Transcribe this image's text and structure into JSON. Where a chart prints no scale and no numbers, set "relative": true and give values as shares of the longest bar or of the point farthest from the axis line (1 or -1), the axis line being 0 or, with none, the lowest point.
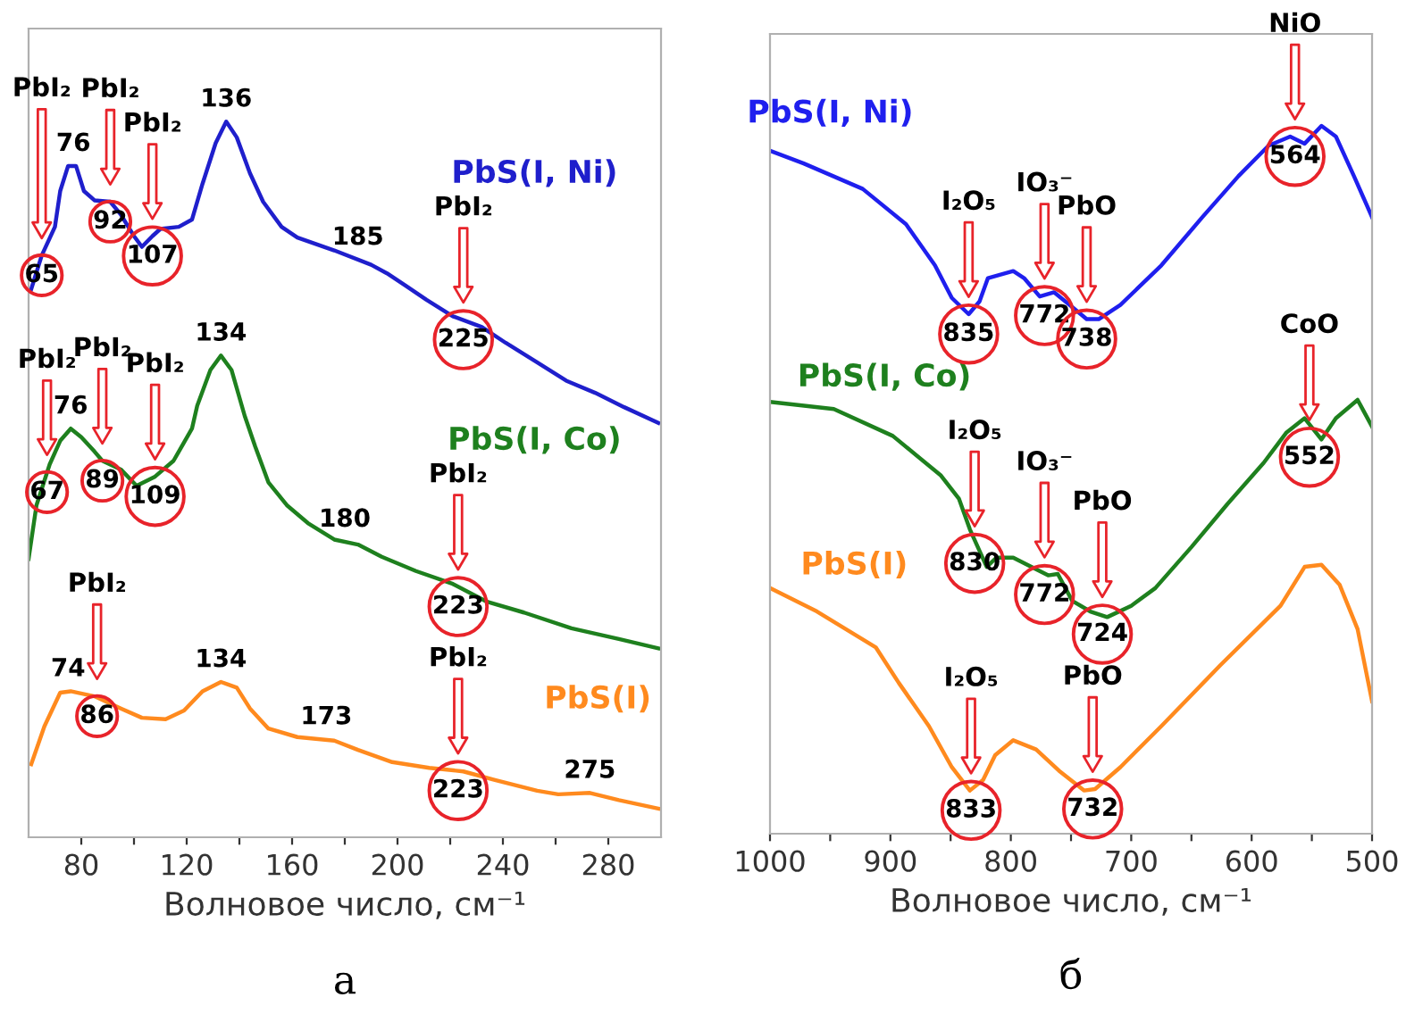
{
  "chart_data": [
    {
      "type": "line",
      "relative": true,
      "xlabel": "Волновое число, см⁻¹",
      "xlim": [
        60,
        300
      ],
      "xticks": [
        80,
        {
          "value": 100,
          "label": null
        },
        120,
        {
          "value": 140,
          "label": null
        },
        160,
        {
          "value": 180,
          "label": null
        },
        200,
        {
          "value": 220,
          "label": null
        },
        240,
        {
          "value": 260,
          "label": null
        },
        280
      ],
      "tick_labels": "x",
      "series": [
        {
          "name": "PbS(I, Ni)",
          "color": "#1f1fcc",
          "x": [
            61,
            65,
            70,
            72,
            75,
            78,
            81,
            85,
            91,
            95,
            100,
            103,
            107,
            110,
            117,
            122,
            126,
            131,
            135,
            139,
            144,
            149,
            156,
            162,
            176,
            190,
            196,
            203,
            211,
            221,
            232,
            241,
            252,
            264,
            275,
            286,
            299
          ],
          "values": [
            0.766,
            0.813,
            0.853,
            0.903,
            0.938,
            0.938,
            0.903,
            0.89,
            0.888,
            0.87,
            0.84,
            0.825,
            0.84,
            0.85,
            0.853,
            0.863,
            0.913,
            0.97,
            1.0,
            0.978,
            0.928,
            0.888,
            0.853,
            0.838,
            0.82,
            0.8,
            0.788,
            0.771,
            0.751,
            0.728,
            0.713,
            0.691,
            0.666,
            0.638,
            0.621,
            0.601,
            0.579
          ]
        },
        {
          "name": "PbS(I, Co)",
          "color": "#1e801e",
          "x": [
            60,
            63,
            68,
            72,
            76,
            80,
            85,
            88,
            95,
            101,
            108,
            115,
            122,
            124,
            129,
            133,
            137,
            142,
            146,
            151,
            158,
            166,
            176,
            185,
            194,
            207,
            221,
            234,
            248,
            266,
            284,
            299
          ],
          "values": [
            0.389,
            0.464,
            0.521,
            0.554,
            0.571,
            0.559,
            0.539,
            0.526,
            0.514,
            0.491,
            0.504,
            0.526,
            0.571,
            0.603,
            0.653,
            0.673,
            0.653,
            0.589,
            0.546,
            0.496,
            0.464,
            0.439,
            0.416,
            0.409,
            0.392,
            0.372,
            0.354,
            0.329,
            0.314,
            0.292,
            0.277,
            0.264
          ]
        },
        {
          "name": "PbS(I)",
          "color": "#ff8a1e",
          "x": [
            61,
            66,
            72,
            76,
            85,
            95,
            103,
            112,
            119,
            126,
            133,
            139,
            144,
            151,
            162,
            176,
            185,
            198,
            212,
            225,
            237,
            253,
            261,
            273,
            284,
            299
          ],
          "values": [
            0.102,
            0.155,
            0.202,
            0.204,
            0.197,
            0.18,
            0.167,
            0.165,
            0.177,
            0.204,
            0.217,
            0.209,
            0.18,
            0.152,
            0.14,
            0.135,
            0.122,
            0.105,
            0.097,
            0.092,
            0.08,
            0.065,
            0.06,
            0.062,
            0.052,
            0.04
          ]
        }
      ],
      "annotations": [
        "PbI₂",
        {
          "text": "65",
          "x": 65,
          "y": 0.813
        },
        {
          "text": "76",
          "x": 77,
          "y": 0.938
        },
        "PbI₂",
        {
          "text": "92",
          "x": 91,
          "y": 0.888
        },
        "PbI₂",
        {
          "text": "107",
          "x": 107,
          "y": 0.84
        },
        {
          "text": "136",
          "x": 135,
          "y": 1.0
        },
        {
          "text": "185",
          "x": 185,
          "y": 0.807
        },
        "PbI₂",
        {
          "text": "225",
          "x": 225,
          "y": 0.723
        },
        "PbI₂",
        {
          "text": "67",
          "x": 67,
          "y": 0.51
        },
        {
          "text": "76",
          "x": 76,
          "y": 0.571
        },
        "PbI₂",
        {
          "text": "89",
          "x": 88,
          "y": 0.526
        },
        "PbI₂",
        {
          "text": "109",
          "x": 108,
          "y": 0.504
        },
        {
          "text": "134",
          "x": 133,
          "y": 0.673
        },
        {
          "text": "180",
          "x": 180,
          "y": 0.413
        },
        "PbI₂",
        {
          "text": "223",
          "x": 223,
          "y": 0.35
        },
        {
          "text": "74",
          "x": 75,
          "y": 0.204
        },
        "PbI₂",
        {
          "text": "86",
          "x": 86,
          "y": 0.197
        },
        {
          "text": "134",
          "x": 133,
          "y": 0.217
        },
        {
          "text": "173",
          "x": 173,
          "y": 0.137
        },
        "PbI₂",
        {
          "text": "223",
          "x": 223,
          "y": 0.093
        },
        {
          "text": "275",
          "x": 273,
          "y": 0.062
        },
        "а"
      ]
    },
    {
      "type": "line",
      "relative": true,
      "xlabel": "Волновое число, см⁻¹",
      "xlim": [
        1000,
        500
      ],
      "xticks": [
        1000,
        {
          "value": 950,
          "label": null
        },
        900,
        {
          "value": 850,
          "label": null
        },
        800,
        {
          "value": 750,
          "label": null
        },
        700,
        {
          "value": 650,
          "label": null
        },
        600,
        {
          "value": 550,
          "label": null
        },
        500
      ],
      "tick_labels": "x",
      "series": [
        {
          "name": "PbS(I, Ni)",
          "color": "#1f1fee",
          "x": [
            1000,
            972,
            923,
            887,
            863,
            849,
            835,
            826,
            819,
            798,
            789,
            776,
            764,
            749,
            737,
            727,
            709,
            675,
            641,
            611,
            586,
            568,
            556,
            542,
            530,
            515,
            500
          ],
          "values": [
            0.965,
            0.947,
            0.911,
            0.861,
            0.803,
            0.757,
            0.734,
            0.752,
            0.785,
            0.795,
            0.785,
            0.759,
            0.765,
            0.744,
            0.727,
            0.727,
            0.747,
            0.803,
            0.871,
            0.929,
            0.972,
            0.985,
            0.975,
            1.0,
            0.985,
            0.929,
            0.871
          ]
        },
        {
          "name": "PbS(I, Co)",
          "color": "#1e801e",
          "x": [
            1000,
            947,
            898,
            858,
            843,
            834,
            820,
            812,
            798,
            783,
            769,
            761,
            749,
            734,
            720,
            700,
            680,
            650,
            620,
            590,
            571,
            556,
            542,
            530,
            512,
            500
          ],
          "values": [
            0.61,
            0.6,
            0.562,
            0.506,
            0.473,
            0.43,
            0.377,
            0.39,
            0.39,
            0.377,
            0.365,
            0.367,
            0.329,
            0.314,
            0.306,
            0.322,
            0.347,
            0.405,
            0.466,
            0.524,
            0.567,
            0.587,
            0.557,
            0.587,
            0.613,
            0.575
          ]
        },
        {
          "name": "PbS(I)",
          "color": "#ff8a1e",
          "x": [
            1000,
            961,
            912,
            893,
            868,
            849,
            834,
            823,
            813,
            798,
            779,
            760,
            739,
            730,
            709,
            675,
            626,
            576,
            556,
            542,
            527,
            512,
            500
          ],
          "values": [
            0.347,
            0.314,
            0.263,
            0.213,
            0.152,
            0.094,
            0.061,
            0.076,
            0.111,
            0.132,
            0.119,
            0.089,
            0.061,
            0.063,
            0.094,
            0.152,
            0.238,
            0.322,
            0.377,
            0.38,
            0.352,
            0.289,
            0.187
          ]
        }
      ],
      "annotations": [
        "I₂O₅",
        {
          "text": "835",
          "x": 835,
          "y": 0.734
        },
        "IO₃⁻",
        {
          "text": "772",
          "x": 772,
          "y": 0.76
        },
        "PbO",
        {
          "text": "738",
          "x": 737,
          "y": 0.727
        },
        "NiO",
        {
          "text": "564",
          "x": 564,
          "y": 0.985
        },
        "I₂O₅",
        {
          "text": "830",
          "x": 830,
          "y": 0.41
        },
        "IO₃⁻",
        {
          "text": "772",
          "x": 772,
          "y": 0.366
        },
        "PbO",
        {
          "text": "724",
          "x": 724,
          "y": 0.31
        },
        "CoO",
        {
          "text": "552",
          "x": 552,
          "y": 0.56
        },
        "I₂O₅",
        {
          "text": "833",
          "x": 833,
          "y": 0.061
        },
        "PbO",
        {
          "text": "732",
          "x": 732,
          "y": 0.063
        },
        "б"
      ]
    }
  ]
}
